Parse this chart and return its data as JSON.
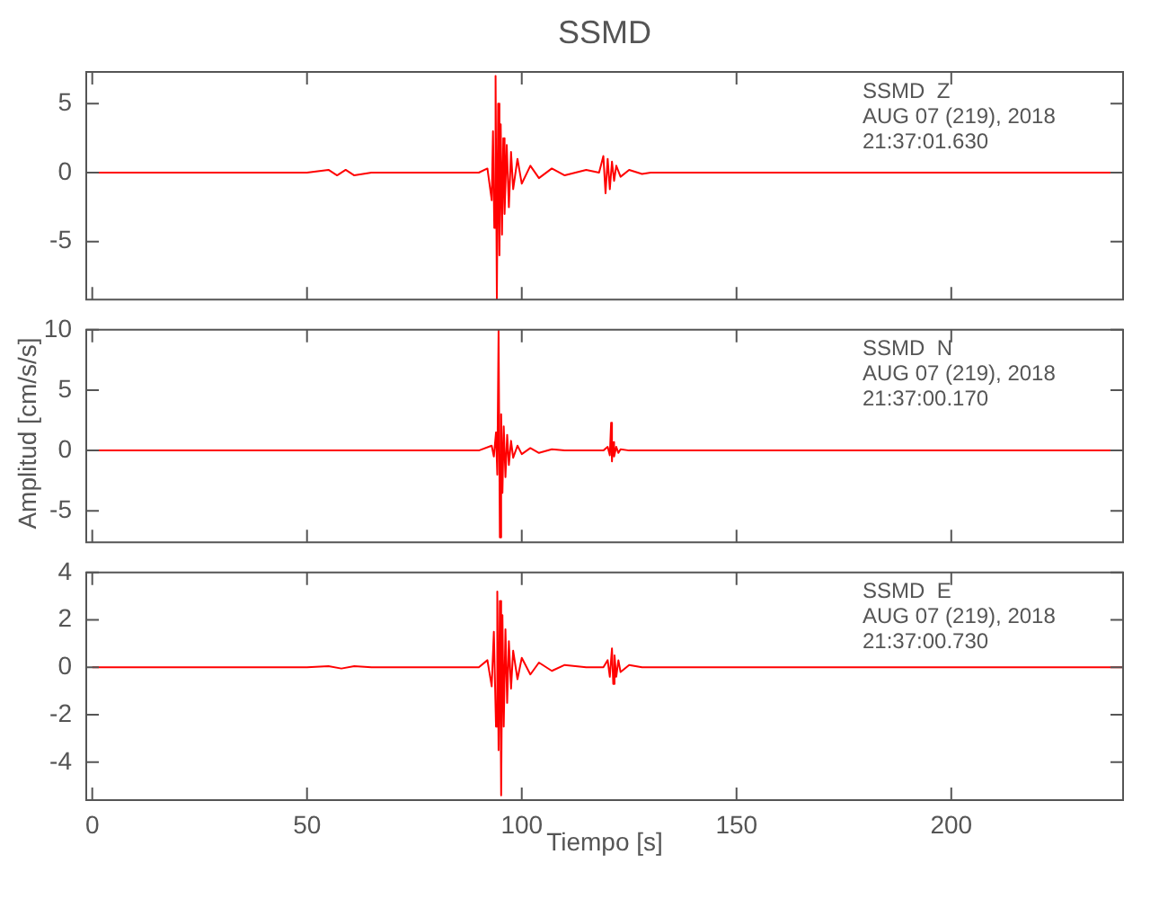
{
  "chart_data": [
    {
      "type": "line",
      "title": "SSMD",
      "xlim": [
        -1.4,
        240
      ],
      "xticks": [
        0,
        50,
        100,
        150,
        200
      ],
      "ylim": [
        -9.2,
        7.3
      ],
      "yticks": [
        -5,
        0,
        5
      ],
      "tick_labels": "y",
      "grid": false,
      "legend": false,
      "marker": "none",
      "annotations": [
        "SSMD  Z",
        "AUG 07 (219), 2018",
        "21:37:01.630"
      ],
      "series": [
        {
          "color": "#ff0000",
          "x": [
            0,
            10,
            20,
            30,
            40,
            50,
            55,
            57,
            59,
            61,
            65,
            70,
            80,
            90,
            92,
            93,
            93.3,
            93.6,
            93.9,
            94.2,
            94.5,
            94.8,
            95.1,
            95.4,
            95.7,
            96,
            96.5,
            97,
            97.5,
            98,
            99,
            100,
            102,
            104,
            107,
            110,
            115,
            118,
            119,
            119.5,
            120,
            120.5,
            121,
            121.5,
            122,
            123,
            125,
            128,
            130,
            140,
            150,
            160,
            170,
            180,
            190,
            200,
            210,
            220,
            230,
            240
          ],
          "values": [
            0,
            0,
            0,
            0,
            0,
            0,
            0.2,
            -0.2,
            0.2,
            -0.2,
            0,
            0,
            0,
            0,
            0.3,
            -2,
            3,
            -4,
            7,
            -9.2,
            5,
            -6,
            3.5,
            -4.5,
            2.5,
            -3,
            2,
            -2.5,
            1.5,
            -1.2,
            1,
            -0.8,
            0.5,
            -0.4,
            0.3,
            -0.2,
            0.2,
            0,
            1.2,
            -1.5,
            1,
            -1.2,
            0.8,
            -0.6,
            0.5,
            -0.3,
            0.2,
            -0.1,
            0,
            0,
            0,
            0,
            0,
            0,
            0,
            0,
            0,
            0,
            0,
            0
          ]
        }
      ]
    },
    {
      "type": "line",
      "ylabel": "Amplitud [cm/s/s]",
      "xlim": [
        -1.4,
        240
      ],
      "xticks": [
        0,
        50,
        100,
        150,
        200
      ],
      "ylim": [
        -7.6,
        10
      ],
      "yticks": [
        -5,
        0,
        5,
        10
      ],
      "tick_labels": "y",
      "grid": false,
      "legend": false,
      "marker": "none",
      "annotations": [
        "SSMD  N",
        "AUG 07 (219), 2018",
        "21:37:00.170"
      ],
      "series": [
        {
          "color": "#ff0000",
          "x": [
            0,
            10,
            20,
            30,
            40,
            50,
            60,
            70,
            80,
            90,
            93,
            93.5,
            94,
            94.3,
            94.6,
            94.9,
            95.2,
            95.5,
            95.8,
            96.2,
            96.6,
            97,
            97.5,
            98,
            99,
            100,
            102,
            104,
            107,
            110,
            115,
            119,
            120,
            120.5,
            120.8,
            121,
            121.2,
            121.5,
            122,
            122.5,
            123,
            125,
            128,
            130,
            140,
            150,
            160,
            170,
            180,
            190,
            200,
            210,
            220,
            230,
            240
          ],
          "values": [
            0,
            0,
            0,
            0,
            0,
            0,
            0,
            0,
            0,
            0,
            0.4,
            -0.5,
            1.5,
            -2,
            10,
            -7.2,
            3,
            -3.5,
            2,
            -2.2,
            1.3,
            -1.2,
            0.8,
            -0.6,
            0.4,
            -0.3,
            0.2,
            -0.2,
            0.1,
            0,
            0,
            0,
            0.3,
            -0.4,
            2.3,
            -0.9,
            0.7,
            -0.5,
            0.3,
            -0.2,
            0.1,
            0,
            0,
            0,
            0,
            0,
            0,
            0,
            0,
            0,
            0,
            0,
            0,
            0,
            0
          ]
        }
      ]
    },
    {
      "type": "line",
      "xlabel": "Tiempo [s]",
      "xlim": [
        -1.4,
        240
      ],
      "xticks": [
        0,
        50,
        100,
        150,
        200
      ],
      "ylim": [
        -5.6,
        4
      ],
      "yticks": [
        -4,
        -2,
        0,
        2,
        4
      ],
      "grid": false,
      "legend": false,
      "marker": "none",
      "annotations": [
        "SSMD  E",
        "AUG 07 (219), 2018",
        "21:37:00.730"
      ],
      "series": [
        {
          "color": "#ff0000",
          "x": [
            0,
            10,
            20,
            30,
            40,
            50,
            55,
            58,
            61,
            65,
            70,
            80,
            90,
            92,
            93,
            93.5,
            94,
            94.3,
            94.6,
            94.9,
            95.2,
            95.5,
            95.8,
            96.2,
            96.6,
            97,
            97.5,
            98,
            99,
            100,
            102,
            104,
            107,
            110,
            115,
            119,
            120,
            120.5,
            121,
            121.3,
            121.6,
            122,
            122.5,
            123,
            125,
            128,
            130,
            140,
            150,
            160,
            170,
            180,
            190,
            200,
            210,
            220,
            230,
            240
          ],
          "values": [
            0,
            0,
            0,
            0,
            0,
            0,
            0.05,
            -0.05,
            0.05,
            0,
            0,
            0,
            0,
            0.3,
            -0.8,
            1.5,
            -2.5,
            3.2,
            -3.5,
            2.8,
            -5.4,
            2.2,
            -2.5,
            1.6,
            -1.5,
            1.1,
            -0.9,
            0.7,
            -0.5,
            0.4,
            -0.3,
            0.2,
            -0.15,
            0.1,
            0,
            0,
            0.3,
            -0.4,
            0.8,
            -0.7,
            0.5,
            -0.4,
            0.3,
            -0.2,
            0.1,
            0,
            0,
            0,
            0,
            0,
            0,
            0,
            0,
            0,
            0,
            0,
            0,
            0
          ]
        }
      ]
    }
  ]
}
